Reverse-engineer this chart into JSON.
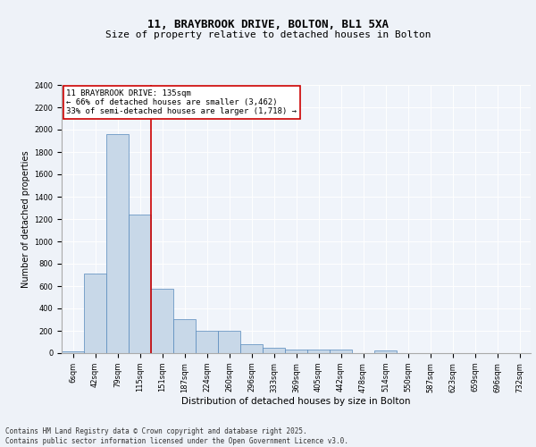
{
  "title1": "11, BRAYBROOK DRIVE, BOLTON, BL1 5XA",
  "title2": "Size of property relative to detached houses in Bolton",
  "xlabel": "Distribution of detached houses by size in Bolton",
  "ylabel": "Number of detached properties",
  "categories": [
    "6sqm",
    "42sqm",
    "79sqm",
    "115sqm",
    "151sqm",
    "187sqm",
    "224sqm",
    "260sqm",
    "296sqm",
    "333sqm",
    "369sqm",
    "405sqm",
    "442sqm",
    "478sqm",
    "514sqm",
    "550sqm",
    "587sqm",
    "623sqm",
    "659sqm",
    "696sqm",
    "732sqm"
  ],
  "bar_heights": [
    15,
    710,
    1960,
    1240,
    575,
    305,
    200,
    200,
    80,
    45,
    35,
    35,
    35,
    0,
    25,
    0,
    0,
    0,
    0,
    0,
    0
  ],
  "bar_color": "#c8d8e8",
  "bar_edge_color": "#5588bb",
  "vline_x": 3.5,
  "vline_color": "#cc0000",
  "annotation_title": "11 BRAYBROOK DRIVE: 135sqm",
  "annotation_line1": "← 66% of detached houses are smaller (3,462)",
  "annotation_line2": "33% of semi-detached houses are larger (1,718) →",
  "annotation_box_color": "#cc0000",
  "ylim": [
    0,
    2400
  ],
  "yticks": [
    0,
    200,
    400,
    600,
    800,
    1000,
    1200,
    1400,
    1600,
    1800,
    2000,
    2200,
    2400
  ],
  "footer": "Contains HM Land Registry data © Crown copyright and database right 2025.\nContains public sector information licensed under the Open Government Licence v3.0.",
  "bg_color": "#eef2f8",
  "plot_bg_color": "#f0f4fa",
  "grid_color": "#ffffff",
  "title_fontsize": 9,
  "subtitle_fontsize": 8,
  "annotation_fontsize": 6.5,
  "ylabel_fontsize": 7,
  "xlabel_fontsize": 7.5,
  "tick_fontsize": 6,
  "footer_fontsize": 5.5
}
